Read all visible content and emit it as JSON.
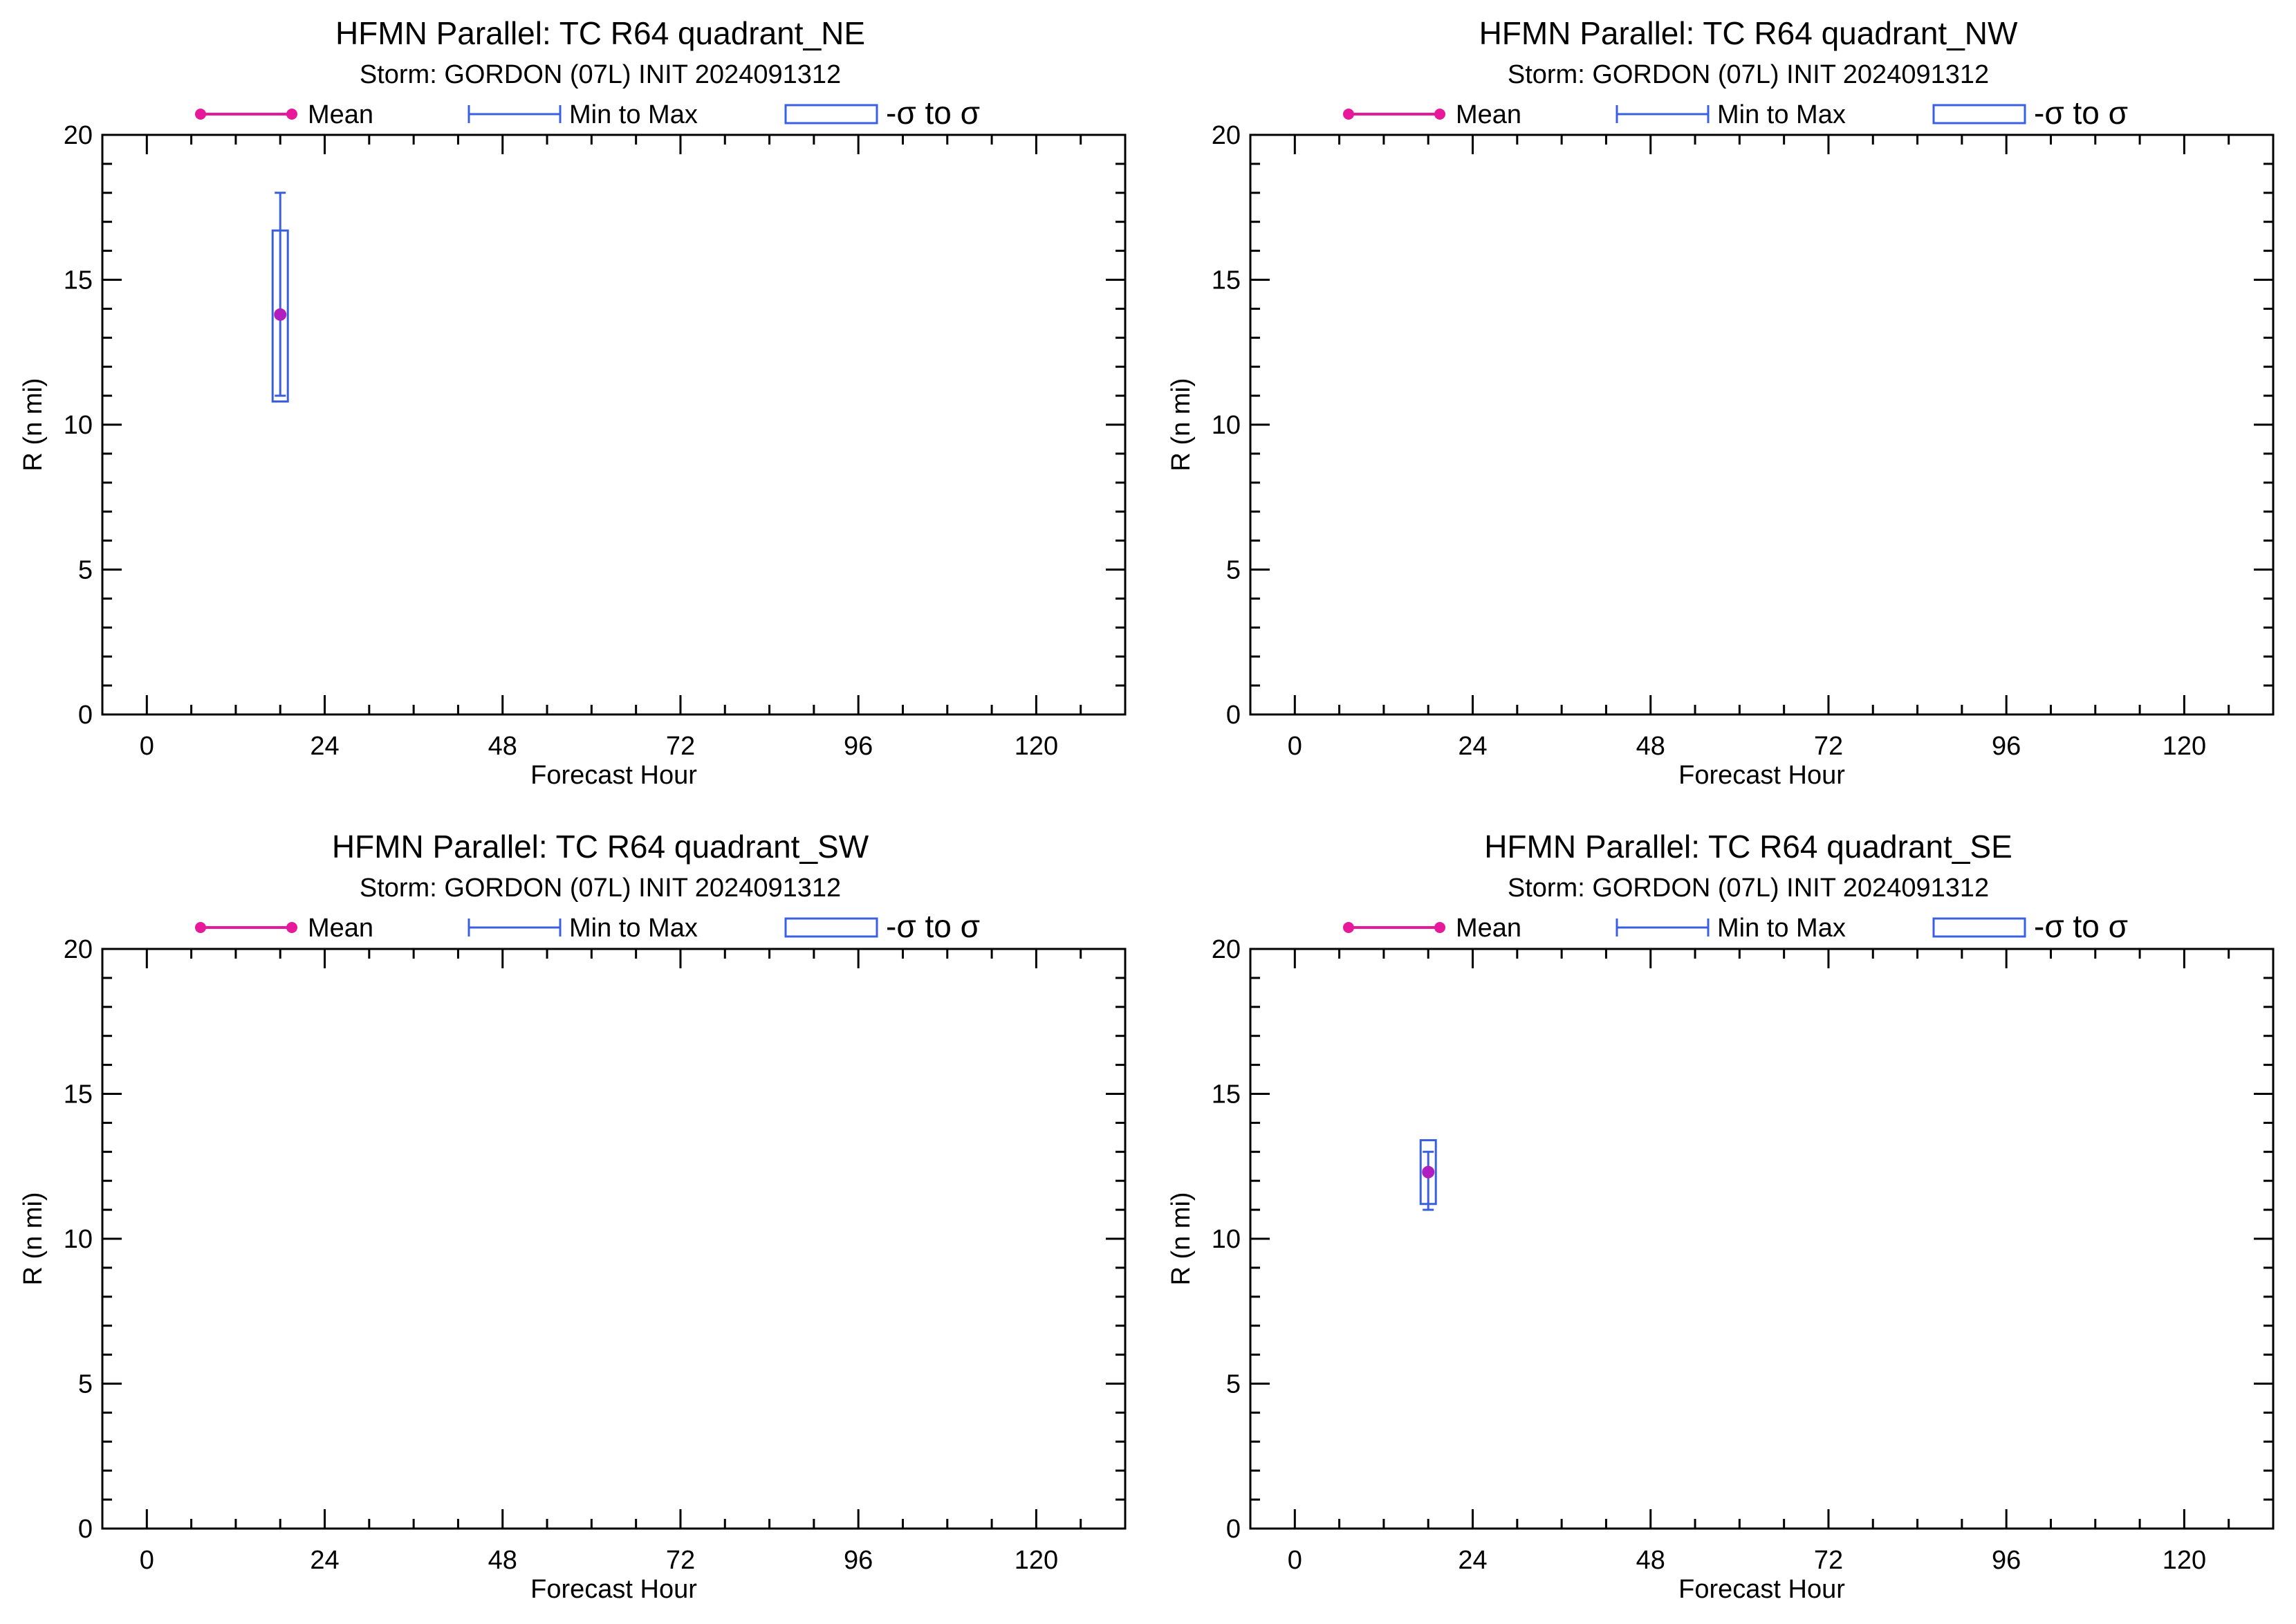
{
  "colors": {
    "mean": "#e8189a",
    "mean_marker": "#b01ec0",
    "range": "#3a5fe0",
    "axis": "#000000",
    "background": "#ffffff"
  },
  "legend": {
    "mean_label": "Mean",
    "range_label": "Min to Max",
    "sigma_label": "-σ to σ"
  },
  "chart_data": [
    {
      "type": "box",
      "title": "HFMN Parallel: TC  R64 quadrant_NE",
      "subtitle": "Storm: GORDON (07L) INIT 2024091312",
      "xlabel": "Forecast Hour",
      "ylabel": "R (n mi)",
      "xlim": [
        -6,
        132
      ],
      "ylim": [
        0,
        20
      ],
      "xticks": [
        0,
        24,
        48,
        72,
        96,
        120
      ],
      "yticks": [
        0,
        5,
        10,
        15,
        20
      ],
      "grid": false,
      "legend_position": "top",
      "points": [
        {
          "x": 18,
          "mean": 13.8,
          "min": 11.0,
          "max": 18.0,
          "sigma_low": 10.8,
          "sigma_high": 16.7
        }
      ]
    },
    {
      "type": "box",
      "title": "HFMN Parallel: TC  R64 quadrant_NW",
      "subtitle": "Storm: GORDON (07L) INIT 2024091312",
      "xlabel": "Forecast Hour",
      "ylabel": "R (n mi)",
      "xlim": [
        -6,
        132
      ],
      "ylim": [
        0,
        20
      ],
      "xticks": [
        0,
        24,
        48,
        72,
        96,
        120
      ],
      "yticks": [
        0,
        5,
        10,
        15,
        20
      ],
      "grid": false,
      "legend_position": "top",
      "points": []
    },
    {
      "type": "box",
      "title": "HFMN Parallel: TC  R64 quadrant_SW",
      "subtitle": "Storm: GORDON (07L) INIT 2024091312",
      "xlabel": "Forecast Hour",
      "ylabel": "R (n mi)",
      "xlim": [
        -6,
        132
      ],
      "ylim": [
        0,
        20
      ],
      "xticks": [
        0,
        24,
        48,
        72,
        96,
        120
      ],
      "yticks": [
        0,
        5,
        10,
        15,
        20
      ],
      "grid": false,
      "legend_position": "top",
      "points": []
    },
    {
      "type": "box",
      "title": "HFMN Parallel: TC  R64 quadrant_SE",
      "subtitle": "Storm: GORDON (07L) INIT 2024091312",
      "xlabel": "Forecast Hour",
      "ylabel": "R (n mi)",
      "xlim": [
        -6,
        132
      ],
      "ylim": [
        0,
        20
      ],
      "xticks": [
        0,
        24,
        48,
        72,
        96,
        120
      ],
      "yticks": [
        0,
        5,
        10,
        15,
        20
      ],
      "grid": false,
      "legend_position": "top",
      "points": [
        {
          "x": 18,
          "mean": 12.3,
          "min": 11.0,
          "max": 13.0,
          "sigma_low": 11.2,
          "sigma_high": 13.4
        }
      ]
    }
  ]
}
